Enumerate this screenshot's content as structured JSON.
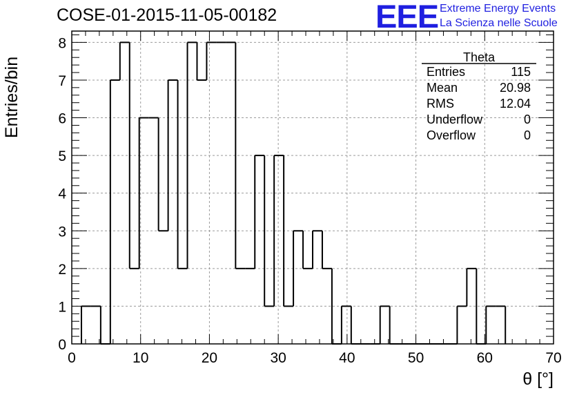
{
  "title": "COSE-01-2015-11-05-00182",
  "logo": {
    "mark": "EEE",
    "line1": "Extreme Energy Events",
    "line2": "La Scienza nelle Scuole"
  },
  "colors": {
    "logo": "#1f1fe0",
    "grid": "#9a9a9a",
    "line": "#000000"
  },
  "stats": {
    "title": "Theta",
    "rows": [
      {
        "label": "Entries",
        "value": "115"
      },
      {
        "label": "Mean",
        "value": "20.98"
      },
      {
        "label": "RMS",
        "value": "12.04"
      },
      {
        "label": "Underflow",
        "value": "0"
      },
      {
        "label": "Overflow",
        "value": "0"
      }
    ]
  },
  "chart_data": {
    "type": "bar",
    "histogram": true,
    "ylabel": "Entries/bin",
    "xlabel": "θ [°]",
    "xlim": [
      0,
      70
    ],
    "ylim": [
      0,
      8.3
    ],
    "xticks": [
      0,
      10,
      20,
      30,
      40,
      50,
      60,
      70
    ],
    "yticks": [
      0,
      1,
      2,
      3,
      4,
      5,
      6,
      7,
      8
    ],
    "grid": true,
    "bin_width": 1.4,
    "bin_starts": [
      1.4,
      2.8,
      4.2,
      5.6,
      7.0,
      8.4,
      9.8,
      11.2,
      12.6,
      14.0,
      15.4,
      16.8,
      18.2,
      19.6,
      21.0,
      22.4,
      23.8,
      25.2,
      26.6,
      28.0,
      29.4,
      30.8,
      32.2,
      33.6,
      35.0,
      36.4,
      37.8,
      39.2,
      40.6,
      42.0,
      43.4,
      44.8,
      46.2,
      47.6,
      49.0,
      50.4,
      51.8,
      53.2,
      54.6,
      56.0,
      57.4,
      58.8,
      60.2,
      61.6
    ],
    "values": [
      1,
      1,
      0,
      7,
      8,
      2,
      6,
      6,
      3,
      7,
      2,
      8,
      7,
      8,
      8,
      8,
      2,
      2,
      5,
      1,
      5,
      1,
      3,
      2,
      3,
      2,
      0,
      1,
      0,
      0,
      0,
      1,
      0,
      0,
      0,
      0,
      0,
      0,
      0,
      1,
      2,
      0,
      1,
      1
    ]
  }
}
